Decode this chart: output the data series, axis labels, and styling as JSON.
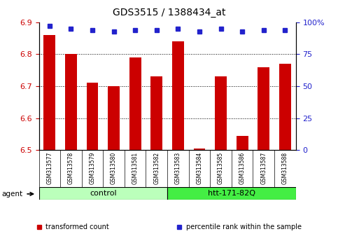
{
  "title": "GDS3515 / 1388434_at",
  "samples": [
    "GSM313577",
    "GSM313578",
    "GSM313579",
    "GSM313580",
    "GSM313581",
    "GSM313582",
    "GSM313583",
    "GSM313584",
    "GSM313585",
    "GSM313586",
    "GSM313587",
    "GSM313588"
  ],
  "bar_values": [
    6.86,
    6.8,
    6.71,
    6.7,
    6.79,
    6.73,
    6.84,
    6.505,
    6.73,
    6.545,
    6.76,
    6.77
  ],
  "percentile_values": [
    97,
    95,
    94,
    93,
    94,
    94,
    95,
    93,
    95,
    93,
    94,
    94
  ],
  "ylim_left": [
    6.5,
    6.9
  ],
  "ylim_right": [
    0,
    100
  ],
  "yticks_left": [
    6.5,
    6.6,
    6.7,
    6.8,
    6.9
  ],
  "yticks_right": [
    0,
    25,
    50,
    75,
    100
  ],
  "yticklabels_right": [
    "0",
    "25",
    "50",
    "75",
    "100%"
  ],
  "bar_color": "#cc0000",
  "dot_color": "#2222cc",
  "bar_base": 6.5,
  "groups": [
    {
      "label": "control",
      "start": 0,
      "end": 6,
      "color": "#bbffbb"
    },
    {
      "label": "htt-171-82Q",
      "start": 6,
      "end": 12,
      "color": "#44ee44"
    }
  ],
  "agent_label": "agent",
  "legend_items": [
    {
      "color": "#cc0000",
      "label": "transformed count",
      "marker": "s"
    },
    {
      "color": "#2222cc",
      "label": "percentile rank within the sample",
      "marker": "s"
    }
  ],
  "tick_label_color_left": "#cc0000",
  "tick_label_color_right": "#2222cc",
  "sample_box_color": "#cccccc",
  "grid_yticks": [
    6.6,
    6.7,
    6.8
  ]
}
